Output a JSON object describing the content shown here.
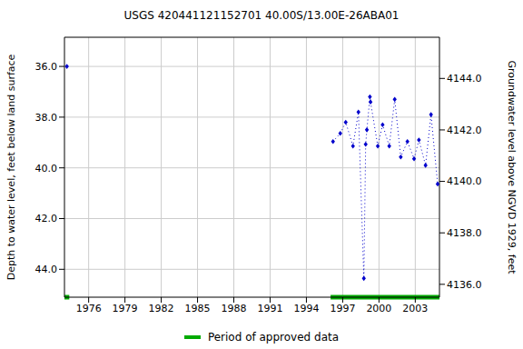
{
  "chart_data": {
    "type": "line",
    "title": "USGS 420441121152701 40.00S/13.00E-26ABA01",
    "xlabel": null,
    "ylabel": "Depth to water level, feet below land surface",
    "y2label": "Groundwater level above NGVD 1929, feet",
    "x": [
      1974.2,
      null,
      1996.2,
      1996.8,
      1997.25,
      1997.85,
      1998.3,
      1998.75,
      1998.9,
      1999.0,
      1999.25,
      1999.3,
      1999.9,
      2000.3,
      2000.85,
      2001.3,
      2001.8,
      2002.35,
      2002.9,
      2003.3,
      2003.85,
      2004.3,
      2004.85
    ],
    "series": [
      {
        "name": "Depth to water level",
        "color": "#0000cc",
        "marker": "diamond",
        "line_style": "dotted",
        "values": [
          36.0,
          null,
          38.96,
          38.64,
          38.2,
          39.14,
          37.8,
          44.36,
          39.07,
          38.5,
          37.2,
          37.4,
          39.14,
          38.3,
          39.14,
          37.3,
          39.57,
          38.96,
          39.64,
          38.9,
          39.9,
          37.9,
          40.64
        ]
      }
    ],
    "approved_periods": {
      "name": "Period of approved data",
      "color": "#00aa00",
      "periods": [
        [
          1974.0,
          1974.4
        ],
        [
          1996.0,
          2005.0
        ]
      ]
    },
    "xlim": [
      1974.0,
      2005.0
    ],
    "xticks": [
      1976,
      1979,
      1982,
      1985,
      1988,
      1991,
      1994,
      1997,
      2000,
      2003
    ],
    "ylim": [
      34.85,
      45.1
    ],
    "yticks": [
      {
        "value": 36,
        "label": "36.0"
      },
      {
        "value": 38,
        "label": "38.0"
      },
      {
        "value": 40,
        "label": "40.0"
      },
      {
        "value": 42,
        "label": "42.0"
      },
      {
        "value": 44,
        "label": "44.0"
      }
    ],
    "y2lim": [
      4135.5,
      4145.6
    ],
    "y2ticks": [
      {
        "value": 4136,
        "label": "4136.0"
      },
      {
        "value": 4138,
        "label": "4138.0"
      },
      {
        "value": 4140,
        "label": "4140.0"
      },
      {
        "value": 4142,
        "label": "4142.0"
      },
      {
        "value": 4144,
        "label": "4144.0"
      }
    ],
    "grid": true
  }
}
